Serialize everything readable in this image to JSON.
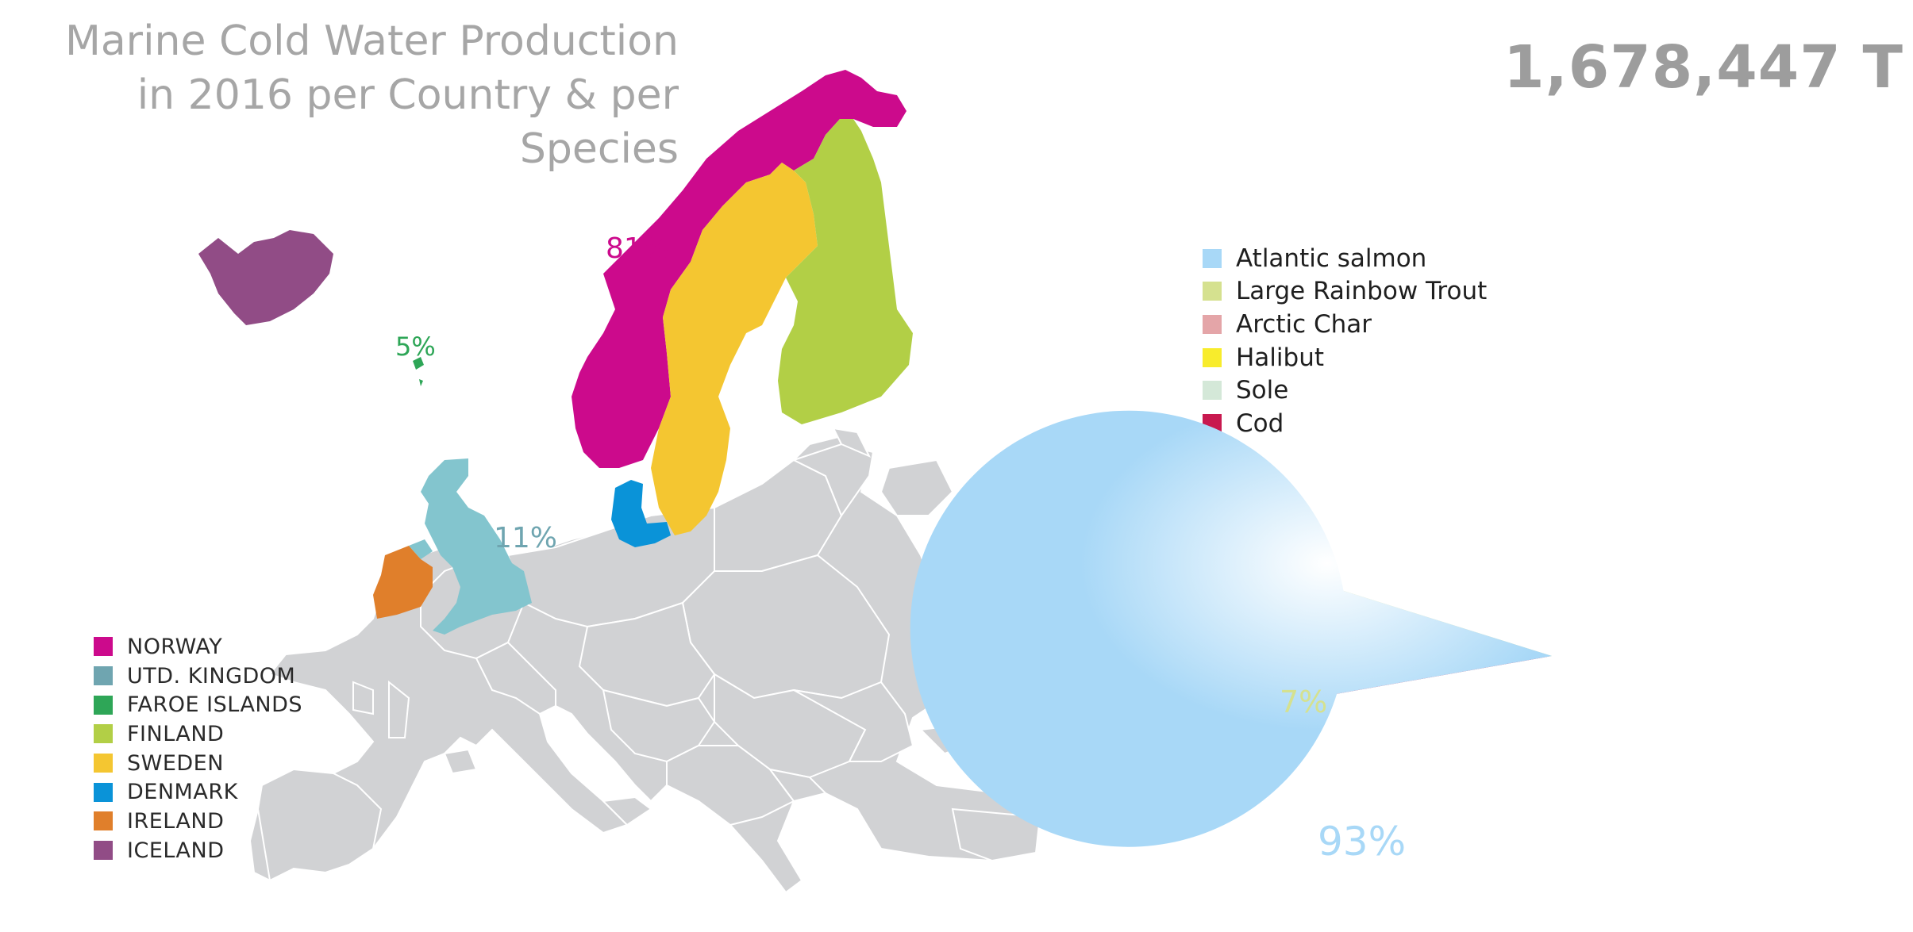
{
  "title": {
    "line1": "Marine Cold Water Production",
    "line2": "in 2016 per Country & per Species"
  },
  "total": "1,678,447 T",
  "countries": [
    {
      "name": "NORWAY",
      "color": "#cc0a8c",
      "pct_label": "81%"
    },
    {
      "name": "UTD. KINGDOM",
      "color": "#6fa5b0",
      "pct_label": "11%",
      "map_color": "#83c5ce"
    },
    {
      "name": "FAROE ISLANDS",
      "color": "#2ea657",
      "pct_label": "5%"
    },
    {
      "name": "FINLAND",
      "color": "#b2cf46"
    },
    {
      "name": "SWEDEN",
      "color": "#f4c631"
    },
    {
      "name": "DENMARK",
      "color": "#0a93d8"
    },
    {
      "name": "IRELAND",
      "color": "#e07f2b"
    },
    {
      "name": "ICELAND",
      "color": "#914c86"
    }
  ],
  "chart_data": {
    "type": "pie",
    "title": "Marine Cold Water Production in 2016 per Country & per Species",
    "total": "1,678,447 T",
    "series": [
      {
        "name": "Atlantic salmon",
        "value": 93,
        "color": "#a8d8f7",
        "label": "93%"
      },
      {
        "name": "Large Rainbow Trout",
        "value": 6.6,
        "color": "#d5e18f",
        "label": "7%"
      },
      {
        "name": "Arctic Char",
        "value": 0.25,
        "color": "#e4a5a8"
      },
      {
        "name": "Halibut",
        "value": 0.35,
        "color": "#f8ec2c"
      },
      {
        "name": "Sole",
        "value": 0.05,
        "color": "#d4e8d8"
      },
      {
        "name": "Cod",
        "value": 0.4,
        "color": "#c8194f"
      }
    ],
    "legend_placement": "top-left of pie"
  }
}
